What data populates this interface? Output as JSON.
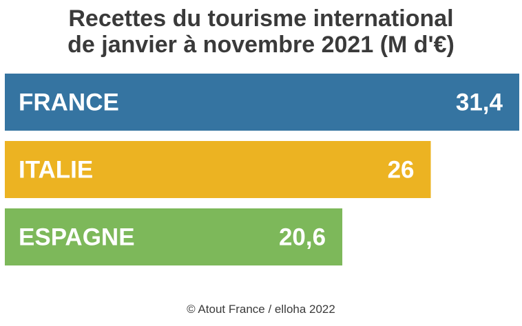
{
  "chart_data": {
    "type": "bar",
    "orientation": "horizontal",
    "title": [
      "Recettes du tourisme international",
      "de janvier à novembre 2021 (M d'€)"
    ],
    "categories": [
      "FRANCE",
      "ITALIE",
      "ESPAGNE"
    ],
    "values": [
      31.4,
      26,
      20.6
    ],
    "value_labels": [
      "31,4",
      "26",
      "20,6"
    ],
    "colors": [
      "#3574a1",
      "#ecb322",
      "#7db85a"
    ],
    "xlim": [
      0,
      31.4
    ],
    "grid": false,
    "legend": "none"
  },
  "source": "© Atout France / elloha 2022"
}
